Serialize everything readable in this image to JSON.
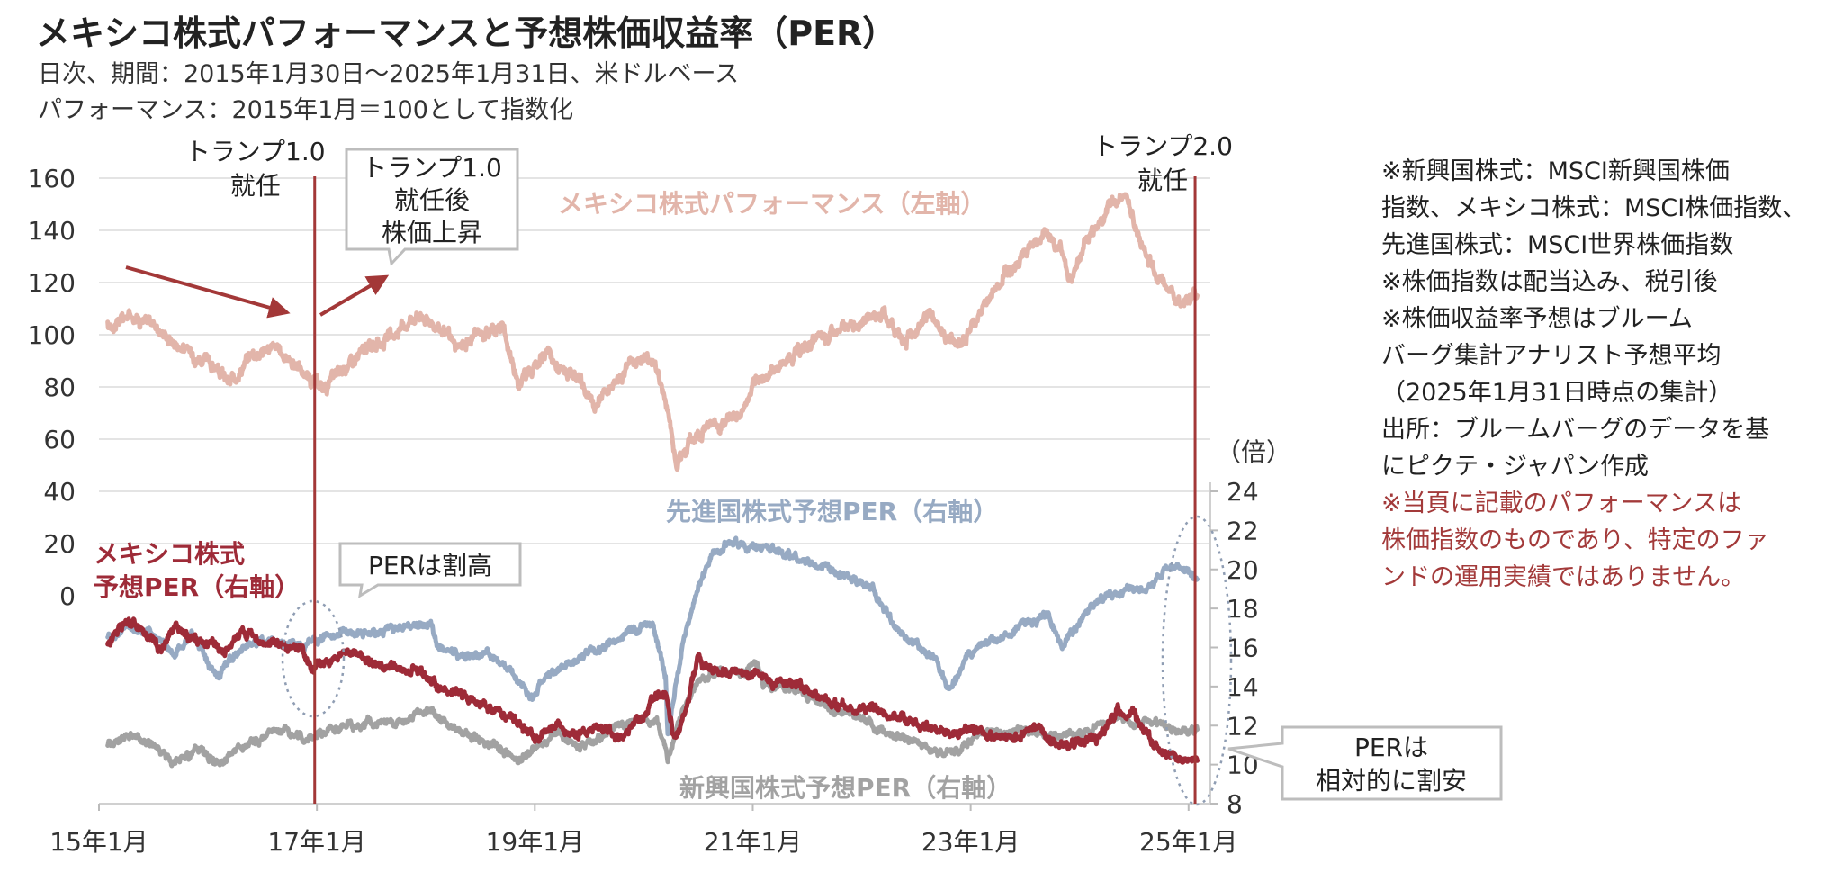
{
  "title": "メキシコ株式パフォーマンスと予想株価収益率（PER）",
  "subtitle": "日次、期間：2015年1月30日～2025年1月31日、米ドルベース",
  "subtitle2": "パフォーマンス：2015年1月＝100として指数化",
  "notes": [
    "※新興国株式：MSCI新興国株価",
    "指数、メキシコ株式：MSCI株価指数、",
    "先進国株式：MSCI世界株価指数",
    "※株価指数は配当込み、税引後",
    "※株価収益率予想はブルーム",
    "バーグ集計アナリスト予想平均",
    "（2025年1月31日時点の集計）",
    "出所：ブルームバーグのデータを基",
    "にピクテ・ジャパン作成"
  ],
  "notes_red": [
    "※当頁に記載のパフォーマンスは",
    "株価指数のものであり、特定のファ",
    "ンドの運用実績ではありません。"
  ],
  "colors": {
    "mexico_perf": "#e2b5aa",
    "dm_per": "#97aac3",
    "em_per": "#a2a2a2",
    "mexico_per": "#9e2b38",
    "event_line": "#a33838",
    "grid": "#e4e4e4",
    "callout_border": "#bdbdbd",
    "ellipse": "#8f9db3"
  },
  "chart_data": {
    "type": "line",
    "x_ticks": [
      "15年1月",
      "17年1月",
      "19年1月",
      "21年1月",
      "23年1月",
      "25年1月"
    ],
    "x_tick_years": [
      2015,
      2017,
      2019,
      2021,
      2023,
      2025
    ],
    "xlim": [
      2015.0,
      2025.2
    ],
    "left_axis": {
      "ylim": [
        0,
        160
      ],
      "ticks": [
        0,
        20,
        40,
        60,
        80,
        100,
        120,
        140,
        160
      ]
    },
    "right_axis": {
      "ylim": [
        8,
        24
      ],
      "ticks": [
        8,
        10,
        12,
        14,
        16,
        18,
        20,
        22,
        24
      ],
      "unit_label": "（倍）"
    },
    "series": [
      {
        "name": "メキシコ株式パフォーマンス（左軸）",
        "axis": "left",
        "key": "mexico_perf",
        "points": [
          [
            2015.08,
            103
          ],
          [
            2015.3,
            108
          ],
          [
            2015.5,
            104
          ],
          [
            2015.7,
            97
          ],
          [
            2015.9,
            92
          ],
          [
            2016.05,
            88
          ],
          [
            2016.2,
            81
          ],
          [
            2016.4,
            93
          ],
          [
            2016.6,
            95
          ],
          [
            2016.8,
            89
          ],
          [
            2016.95,
            82
          ],
          [
            2017.05,
            79
          ],
          [
            2017.3,
            89
          ],
          [
            2017.5,
            96
          ],
          [
            2017.7,
            99
          ],
          [
            2017.9,
            108
          ],
          [
            2018.1,
            104
          ],
          [
            2018.3,
            94
          ],
          [
            2018.5,
            101
          ],
          [
            2018.7,
            103
          ],
          [
            2018.85,
            82
          ],
          [
            2019.0,
            88
          ],
          [
            2019.1,
            93
          ],
          [
            2019.25,
            86
          ],
          [
            2019.4,
            82
          ],
          [
            2019.55,
            73
          ],
          [
            2019.8,
            86
          ],
          [
            2020.0,
            92
          ],
          [
            2020.1,
            89
          ],
          [
            2020.2,
            75
          ],
          [
            2020.3,
            52
          ],
          [
            2020.5,
            63
          ],
          [
            2020.7,
            66
          ],
          [
            2020.9,
            70
          ],
          [
            2021.0,
            80
          ],
          [
            2021.2,
            87
          ],
          [
            2021.4,
            93
          ],
          [
            2021.6,
            98
          ],
          [
            2021.8,
            101
          ],
          [
            2022.0,
            106
          ],
          [
            2022.2,
            108
          ],
          [
            2022.4,
            97
          ],
          [
            2022.6,
            108
          ],
          [
            2022.75,
            100
          ],
          [
            2022.9,
            96
          ],
          [
            2023.1,
            109
          ],
          [
            2023.3,
            123
          ],
          [
            2023.5,
            132
          ],
          [
            2023.7,
            138
          ],
          [
            2023.85,
            131
          ],
          [
            2023.9,
            121
          ],
          [
            2024.1,
            139
          ],
          [
            2024.3,
            150
          ],
          [
            2024.42,
            154
          ],
          [
            2024.55,
            136
          ],
          [
            2024.7,
            124
          ],
          [
            2024.9,
            113
          ],
          [
            2025.08,
            115
          ]
        ]
      },
      {
        "name": "先進国株式予想PER（右軸）",
        "axis": "right",
        "key": "dm_per",
        "points": [
          [
            2015.08,
            16.4
          ],
          [
            2015.25,
            17.0
          ],
          [
            2015.5,
            16.6
          ],
          [
            2015.7,
            15.6
          ],
          [
            2015.85,
            16.8
          ],
          [
            2016.0,
            15.2
          ],
          [
            2016.1,
            14.6
          ],
          [
            2016.3,
            16.0
          ],
          [
            2016.5,
            16.3
          ],
          [
            2016.7,
            16.3
          ],
          [
            2016.9,
            16.1
          ],
          [
            2017.1,
            16.7
          ],
          [
            2017.3,
            16.8
          ],
          [
            2017.6,
            16.7
          ],
          [
            2017.9,
            17.2
          ],
          [
            2018.05,
            17.3
          ],
          [
            2018.1,
            16.0
          ],
          [
            2018.3,
            15.7
          ],
          [
            2018.6,
            15.6
          ],
          [
            2018.8,
            14.7
          ],
          [
            2018.98,
            13.4
          ],
          [
            2019.1,
            14.6
          ],
          [
            2019.3,
            15.1
          ],
          [
            2019.5,
            15.7
          ],
          [
            2019.7,
            16.1
          ],
          [
            2019.9,
            16.9
          ],
          [
            2020.08,
            17.2
          ],
          [
            2020.2,
            14.5
          ],
          [
            2020.22,
            11.6
          ],
          [
            2020.35,
            16.0
          ],
          [
            2020.5,
            19.2
          ],
          [
            2020.65,
            21.0
          ],
          [
            2020.8,
            21.4
          ],
          [
            2020.95,
            21.0
          ],
          [
            2021.1,
            21.2
          ],
          [
            2021.3,
            20.8
          ],
          [
            2021.5,
            20.4
          ],
          [
            2021.7,
            20.1
          ],
          [
            2021.9,
            19.5
          ],
          [
            2022.1,
            19.0
          ],
          [
            2022.3,
            17.1
          ],
          [
            2022.5,
            16.2
          ],
          [
            2022.7,
            15.2
          ],
          [
            2022.8,
            13.8
          ],
          [
            2022.95,
            15.3
          ],
          [
            2023.1,
            16.2
          ],
          [
            2023.3,
            16.5
          ],
          [
            2023.5,
            17.3
          ],
          [
            2023.7,
            17.6
          ],
          [
            2023.85,
            16.0
          ],
          [
            2024.0,
            17.4
          ],
          [
            2024.2,
            18.5
          ],
          [
            2024.4,
            18.9
          ],
          [
            2024.6,
            18.9
          ],
          [
            2024.75,
            19.8
          ],
          [
            2024.9,
            20.2
          ],
          [
            2025.08,
            19.5
          ]
        ]
      },
      {
        "name": "新興国株式予想PER（右軸）",
        "axis": "right",
        "key": "em_per",
        "points": [
          [
            2015.08,
            11.1
          ],
          [
            2015.3,
            11.5
          ],
          [
            2015.5,
            11.0
          ],
          [
            2015.7,
            10.1
          ],
          [
            2015.9,
            10.7
          ],
          [
            2016.1,
            10.0
          ],
          [
            2016.3,
            10.9
          ],
          [
            2016.5,
            11.3
          ],
          [
            2016.7,
            11.9
          ],
          [
            2016.9,
            11.3
          ],
          [
            2017.1,
            11.7
          ],
          [
            2017.3,
            12.0
          ],
          [
            2017.5,
            12.1
          ],
          [
            2017.7,
            12.1
          ],
          [
            2017.9,
            12.4
          ],
          [
            2018.05,
            12.8
          ],
          [
            2018.2,
            12.1
          ],
          [
            2018.4,
            11.4
          ],
          [
            2018.6,
            11.1
          ],
          [
            2018.85,
            10.2
          ],
          [
            2019.0,
            10.9
          ],
          [
            2019.2,
            11.6
          ],
          [
            2019.4,
            10.9
          ],
          [
            2019.6,
            11.4
          ],
          [
            2019.8,
            12.1
          ],
          [
            2020.0,
            12.3
          ],
          [
            2020.12,
            12.3
          ],
          [
            2020.22,
            10.3
          ],
          [
            2020.35,
            12.6
          ],
          [
            2020.5,
            14.2
          ],
          [
            2020.7,
            14.7
          ],
          [
            2020.9,
            14.6
          ],
          [
            2021.05,
            15.0
          ],
          [
            2021.1,
            14.1
          ],
          [
            2021.3,
            14.0
          ],
          [
            2021.5,
            13.5
          ],
          [
            2021.7,
            12.8
          ],
          [
            2021.9,
            12.6
          ],
          [
            2022.1,
            12.0
          ],
          [
            2022.3,
            11.4
          ],
          [
            2022.5,
            11.2
          ],
          [
            2022.75,
            10.4
          ],
          [
            2022.9,
            10.8
          ],
          [
            2023.1,
            11.7
          ],
          [
            2023.3,
            11.6
          ],
          [
            2023.5,
            11.8
          ],
          [
            2023.7,
            11.4
          ],
          [
            2023.9,
            11.5
          ],
          [
            2024.1,
            11.7
          ],
          [
            2024.3,
            12.4
          ],
          [
            2024.5,
            12.1
          ],
          [
            2024.7,
            12.2
          ],
          [
            2024.9,
            11.6
          ],
          [
            2025.08,
            11.8
          ]
        ]
      },
      {
        "name": "メキシコ株式予想PER（右軸）",
        "axis": "right",
        "key": "mexico_per",
        "points": [
          [
            2015.08,
            16.1
          ],
          [
            2015.2,
            17.3
          ],
          [
            2015.4,
            16.9
          ],
          [
            2015.55,
            15.9
          ],
          [
            2015.7,
            17.0
          ],
          [
            2015.85,
            16.4
          ],
          [
            2016.0,
            16.3
          ],
          [
            2016.15,
            15.6
          ],
          [
            2016.3,
            16.9
          ],
          [
            2016.5,
            16.2
          ],
          [
            2016.7,
            16.2
          ],
          [
            2016.85,
            15.9
          ],
          [
            2016.95,
            14.9
          ],
          [
            2017.05,
            15.1
          ],
          [
            2017.3,
            15.9
          ],
          [
            2017.5,
            15.3
          ],
          [
            2017.7,
            14.9
          ],
          [
            2017.9,
            14.8
          ],
          [
            2018.05,
            14.2
          ],
          [
            2018.2,
            13.9
          ],
          [
            2018.4,
            13.5
          ],
          [
            2018.6,
            12.8
          ],
          [
            2018.8,
            12.4
          ],
          [
            2019.0,
            11.3
          ],
          [
            2019.2,
            11.9
          ],
          [
            2019.4,
            11.6
          ],
          [
            2019.6,
            12.0
          ],
          [
            2019.8,
            11.4
          ],
          [
            2019.95,
            12.4
          ],
          [
            2020.1,
            13.4
          ],
          [
            2020.2,
            13.5
          ],
          [
            2020.28,
            11.4
          ],
          [
            2020.4,
            13.2
          ],
          [
            2020.5,
            15.6
          ],
          [
            2020.55,
            15.0
          ],
          [
            2020.7,
            14.7
          ],
          [
            2020.9,
            14.6
          ],
          [
            2021.05,
            14.7
          ],
          [
            2021.2,
            14.3
          ],
          [
            2021.4,
            14.2
          ],
          [
            2021.6,
            13.4
          ],
          [
            2021.8,
            13.0
          ],
          [
            2022.0,
            13.0
          ],
          [
            2022.2,
            12.6
          ],
          [
            2022.4,
            12.2
          ],
          [
            2022.6,
            12.0
          ],
          [
            2022.8,
            11.6
          ],
          [
            2023.0,
            11.8
          ],
          [
            2023.2,
            11.4
          ],
          [
            2023.4,
            11.4
          ],
          [
            2023.6,
            11.8
          ],
          [
            2023.8,
            11.0
          ],
          [
            2024.0,
            11.2
          ],
          [
            2024.2,
            11.5
          ],
          [
            2024.35,
            12.8
          ],
          [
            2024.5,
            12.6
          ],
          [
            2024.65,
            11.2
          ],
          [
            2024.85,
            10.4
          ],
          [
            2025.08,
            10.2
          ]
        ]
      }
    ],
    "events": [
      {
        "key": "trump1",
        "x": 2016.98,
        "label": [
          "トランプ1.0",
          "就任"
        ]
      },
      {
        "key": "trump2",
        "x": 2025.06,
        "label": [
          "トランプ2.0",
          "就任"
        ]
      }
    ],
    "annotations": {
      "series_label_mexico_perf": "メキシコ株式パフォーマンス（左軸）",
      "series_label_dm_per": "先進国株式予想PER（右軸）",
      "series_label_em_per": "新興国株式予想PER（右軸）",
      "series_label_mexico_per": [
        "メキシコ株式",
        "予想PER（右軸）"
      ],
      "callout_after_trump1": [
        "トランプ1.0",
        "就任後",
        "株価上昇"
      ],
      "callout_per_premium": "PERは割高",
      "callout_per_cheap": [
        "PERは",
        "相対的に割安"
      ]
    }
  }
}
